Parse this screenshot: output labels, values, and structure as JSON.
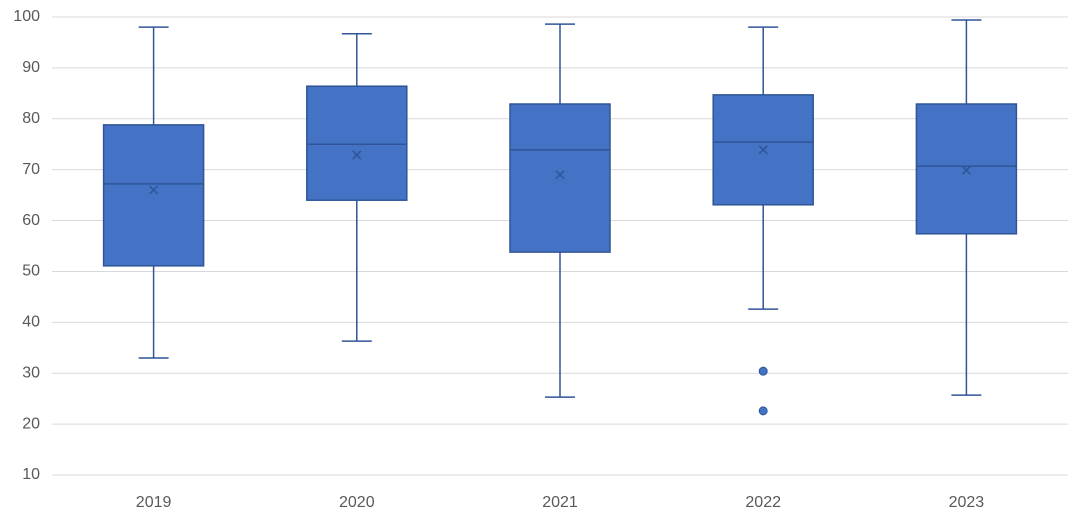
{
  "chart_data": {
    "type": "box",
    "categories": [
      "2019",
      "2020",
      "2021",
      "2022",
      "2023"
    ],
    "color": "#4472c4",
    "edge_color": "#2f5597",
    "boxes": [
      {
        "whisker_low": 33.0,
        "q1": 51.1,
        "median": 67.2,
        "q3": 78.8,
        "whisker_high": 98.0,
        "mean": 66.0
      },
      {
        "whisker_low": 36.3,
        "q1": 64.0,
        "median": 75.0,
        "q3": 86.4,
        "whisker_high": 96.7,
        "mean": 72.9
      },
      {
        "whisker_low": 25.3,
        "q1": 53.8,
        "median": 73.9,
        "q3": 82.9,
        "whisker_high": 98.6,
        "mean": 69.0
      },
      {
        "whisker_low": 42.6,
        "q1": 63.1,
        "median": 75.4,
        "q3": 84.7,
        "whisker_high": 98.0,
        "mean": 73.9,
        "outliers": [
          30.4,
          22.6
        ]
      },
      {
        "whisker_low": 25.7,
        "q1": 57.4,
        "median": 70.7,
        "q3": 82.9,
        "whisker_high": 99.4,
        "mean": 69.9
      }
    ],
    "ylim": [
      10,
      100
    ],
    "yticks": [
      10,
      20,
      30,
      40,
      50,
      60,
      70,
      80,
      90,
      100
    ],
    "grid": true
  }
}
